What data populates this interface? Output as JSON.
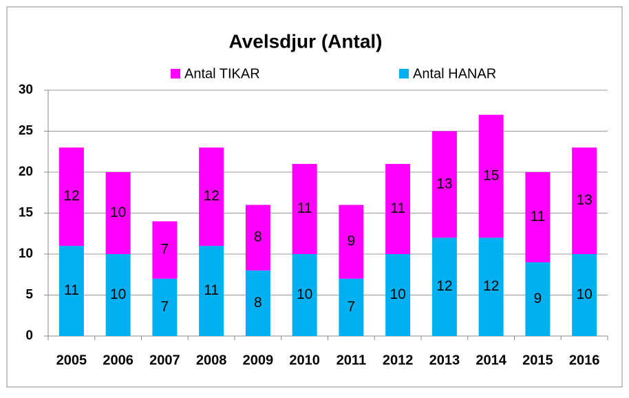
{
  "chart_data": {
    "type": "stacked_bar",
    "title": "Avelsdjur (Antal)",
    "categories": [
      "2005",
      "2006",
      "2007",
      "2008",
      "2009",
      "2010",
      "2011",
      "2012",
      "2013",
      "2014",
      "2015",
      "2016"
    ],
    "series": [
      {
        "name": "Antal HANAR",
        "color": "#00b0f0",
        "values": [
          11,
          10,
          7,
          11,
          8,
          10,
          7,
          10,
          12,
          12,
          9,
          10
        ]
      },
      {
        "name": "Antal TIKAR",
        "color": "#ff00ff",
        "values": [
          12,
          10,
          7,
          12,
          8,
          11,
          9,
          11,
          13,
          15,
          11,
          13
        ]
      }
    ],
    "ylim": [
      0,
      30
    ],
    "yticks": [
      0,
      5,
      10,
      15,
      20,
      25,
      30
    ],
    "grid": true,
    "legend": "top"
  }
}
